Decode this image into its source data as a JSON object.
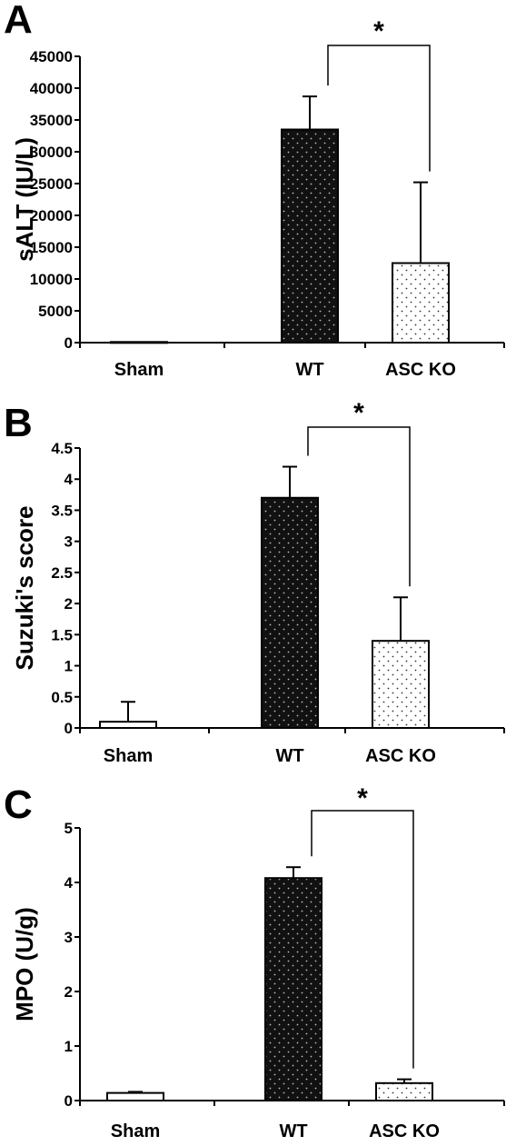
{
  "colors": {
    "dark_bar": "#111111",
    "light_bar": "#ffffff",
    "sham_bar": "#ffffff",
    "axis": "#000000"
  },
  "chart_data": [
    {
      "panel": "A",
      "type": "bar",
      "ylabel": "sALT (IU/L)",
      "categories": [
        "Sham",
        "WT",
        "ASC KO"
      ],
      "values": [
        100,
        33500,
        12500
      ],
      "error_upper": [
        0,
        5200,
        12700
      ],
      "ylim": [
        0,
        45000
      ],
      "yticks": [
        0,
        5000,
        10000,
        15000,
        20000,
        25000,
        30000,
        35000,
        40000,
        45000
      ],
      "yticklabels": [
        "0",
        "5000",
        "10000",
        "15000",
        "20000",
        "25000",
        "30000",
        "35000",
        "40000",
        "45000"
      ],
      "significance": {
        "from": "WT",
        "to": "ASC KO",
        "label": "*"
      },
      "grid": false,
      "legend": "none"
    },
    {
      "panel": "B",
      "type": "bar",
      "ylabel": "Suzuki's score",
      "categories": [
        "Sham",
        "WT",
        "ASC KO"
      ],
      "values": [
        0.1,
        3.7,
        1.4
      ],
      "error_upper": [
        0.32,
        0.5,
        0.7
      ],
      "ylim": [
        0,
        4.5
      ],
      "yticks": [
        0,
        0.5,
        1,
        1.5,
        2,
        2.5,
        3,
        3.5,
        4,
        4.5
      ],
      "yticklabels": [
        "0",
        "0.5",
        "1",
        "1.5",
        "2",
        "2.5",
        "3",
        "3.5",
        "4",
        "4.5"
      ],
      "significance": {
        "from": "WT",
        "to": "ASC KO",
        "label": "*"
      },
      "grid": false,
      "legend": "none"
    },
    {
      "panel": "C",
      "type": "bar",
      "ylabel": "MPO (U/g)",
      "categories": [
        "Sham",
        "WT",
        "ASC KO"
      ],
      "values": [
        0.14,
        4.08,
        0.32
      ],
      "error_upper": [
        0.02,
        0.2,
        0.07
      ],
      "ylim": [
        0,
        5
      ],
      "yticks": [
        0,
        1,
        2,
        3,
        4,
        5
      ],
      "yticklabels": [
        "0",
        "1",
        "2",
        "3",
        "4",
        "5"
      ],
      "significance": {
        "from": "WT",
        "to": "ASC KO",
        "label": "*"
      },
      "grid": false,
      "legend": "none"
    }
  ]
}
